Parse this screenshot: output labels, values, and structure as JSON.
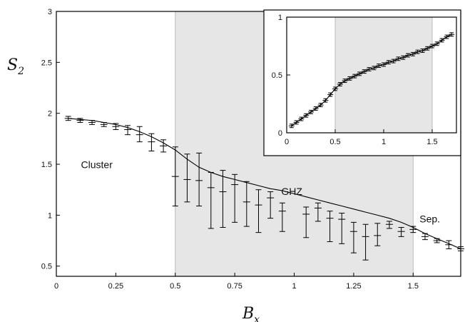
{
  "chart_data": [
    {
      "type": "line",
      "role": "main",
      "xlabel": "B",
      "xlabel_sub": "x",
      "ylabel": "S",
      "ylabel_sub": "2",
      "xlim": [
        0,
        1.7
      ],
      "ylim": [
        0.4,
        3
      ],
      "xticks": [
        0,
        0.25,
        0.5,
        0.75,
        1,
        1.25,
        1.5
      ],
      "xtick_labels": [
        "0",
        "0.25",
        "0.5",
        "0.75",
        "1",
        "1.25",
        "1.5"
      ],
      "yticks": [
        0.5,
        1,
        1.5,
        2,
        2.5,
        3
      ],
      "ytick_labels": [
        "0.5",
        "1",
        "1.5",
        "2",
        "2.5",
        "3"
      ],
      "shaded_region": [
        0.5,
        1.5
      ],
      "region_labels": [
        {
          "text": "Cluster",
          "x": 0.17,
          "y": 1.46
        },
        {
          "text": "GHZ",
          "x": 0.99,
          "y": 1.2
        },
        {
          "text": "Sep.",
          "x": 1.57,
          "y": 0.93
        }
      ],
      "line": {
        "x": [
          0.05,
          0.1,
          0.15,
          0.2,
          0.25,
          0.3,
          0.35,
          0.4,
          0.45,
          0.5,
          0.55,
          0.6,
          0.65,
          0.7,
          0.75,
          0.8,
          0.85,
          0.9,
          0.95,
          1.0,
          1.05,
          1.1,
          1.15,
          1.2,
          1.25,
          1.3,
          1.35,
          1.4,
          1.45,
          1.5,
          1.55,
          1.6,
          1.65,
          1.7
        ],
        "y": [
          1.95,
          1.94,
          1.93,
          1.91,
          1.89,
          1.86,
          1.82,
          1.77,
          1.71,
          1.64,
          1.55,
          1.47,
          1.42,
          1.38,
          1.35,
          1.32,
          1.29,
          1.26,
          1.24,
          1.21,
          1.18,
          1.15,
          1.12,
          1.09,
          1.06,
          1.03,
          1.0,
          0.97,
          0.93,
          0.88,
          0.82,
          0.77,
          0.72,
          0.67
        ]
      },
      "series": [
        {
          "x": [
            0.05,
            0.1,
            0.15,
            0.2,
            0.25,
            0.3,
            0.35,
            0.4,
            0.45,
            0.5,
            0.55,
            0.6,
            0.65,
            0.7,
            0.75,
            0.8,
            0.85,
            0.9,
            0.95,
            1.05,
            1.1,
            1.15,
            1.2,
            1.25,
            1.3,
            1.35,
            1.4,
            1.45,
            1.5,
            1.55,
            1.6,
            1.65,
            1.7
          ],
          "y": [
            1.95,
            1.93,
            1.91,
            1.89,
            1.87,
            1.84,
            1.79,
            1.72,
            1.68,
            1.38,
            1.35,
            1.34,
            1.27,
            1.23,
            1.3,
            1.13,
            1.1,
            1.17,
            1.04,
            1.01,
            1.07,
            0.97,
            0.96,
            0.84,
            0.79,
            0.8,
            0.91,
            0.84,
            0.86,
            0.79,
            0.75,
            0.71,
            0.67
          ],
          "err_low": [
            0.02,
            0.02,
            0.02,
            0.02,
            0.03,
            0.05,
            0.07,
            0.09,
            0.06,
            0.29,
            0.22,
            0.25,
            0.4,
            0.35,
            0.37,
            0.24,
            0.27,
            0.2,
            0.2,
            0.23,
            0.13,
            0.23,
            0.24,
            0.21,
            0.23,
            0.1,
            0.04,
            0.05,
            0.03,
            0.03,
            0.02,
            0.04,
            0.02
          ],
          "err_high": [
            0.02,
            0.02,
            0.02,
            0.02,
            0.03,
            0.04,
            0.08,
            0.08,
            0.06,
            0.29,
            0.25,
            0.27,
            0.15,
            0.21,
            0.1,
            0.2,
            0.15,
            0.06,
            0.08,
            0.07,
            0.05,
            0.07,
            0.06,
            0.09,
            0.12,
            0.12,
            0.03,
            0.04,
            0.03,
            0.03,
            0.02,
            0.04,
            0.02
          ]
        }
      ]
    },
    {
      "type": "line",
      "role": "inset",
      "xlim": [
        0,
        1.75
      ],
      "ylim": [
        0,
        1
      ],
      "xticks": [
        0,
        0.5,
        1,
        1.5
      ],
      "xtick_labels": [
        "0",
        "0.5",
        "1",
        "1.5"
      ],
      "yticks": [
        0,
        0.5,
        1
      ],
      "ytick_labels": [
        "0",
        "0.5",
        "1"
      ],
      "shaded_region": [
        0.5,
        1.5
      ],
      "line": {
        "x": [
          0.05,
          0.1,
          0.15,
          0.2,
          0.25,
          0.3,
          0.35,
          0.4,
          0.45,
          0.5,
          0.55,
          0.6,
          0.65,
          0.7,
          0.75,
          0.8,
          0.85,
          0.9,
          0.95,
          1.0,
          1.05,
          1.1,
          1.15,
          1.2,
          1.25,
          1.3,
          1.35,
          1.4,
          1.45,
          1.5,
          1.55,
          1.6,
          1.65,
          1.7
        ],
        "y": [
          0.06,
          0.09,
          0.12,
          0.15,
          0.18,
          0.21,
          0.24,
          0.28,
          0.33,
          0.38,
          0.42,
          0.45,
          0.47,
          0.49,
          0.51,
          0.53,
          0.55,
          0.56,
          0.58,
          0.59,
          0.61,
          0.62,
          0.64,
          0.65,
          0.67,
          0.68,
          0.7,
          0.71,
          0.73,
          0.75,
          0.77,
          0.8,
          0.83,
          0.85
        ]
      },
      "series": [
        {
          "x": [
            0.05,
            0.1,
            0.15,
            0.2,
            0.25,
            0.3,
            0.35,
            0.4,
            0.45,
            0.5,
            0.55,
            0.6,
            0.65,
            0.7,
            0.75,
            0.8,
            0.85,
            0.9,
            0.95,
            1.0,
            1.05,
            1.1,
            1.15,
            1.2,
            1.25,
            1.3,
            1.35,
            1.4,
            1.45,
            1.5,
            1.55,
            1.6,
            1.65,
            1.7
          ],
          "y": [
            0.06,
            0.09,
            0.12,
            0.15,
            0.18,
            0.21,
            0.24,
            0.28,
            0.33,
            0.38,
            0.42,
            0.45,
            0.47,
            0.49,
            0.51,
            0.53,
            0.55,
            0.56,
            0.58,
            0.59,
            0.61,
            0.62,
            0.64,
            0.65,
            0.67,
            0.68,
            0.7,
            0.71,
            0.73,
            0.75,
            0.77,
            0.8,
            0.83,
            0.85
          ]
        }
      ]
    }
  ]
}
